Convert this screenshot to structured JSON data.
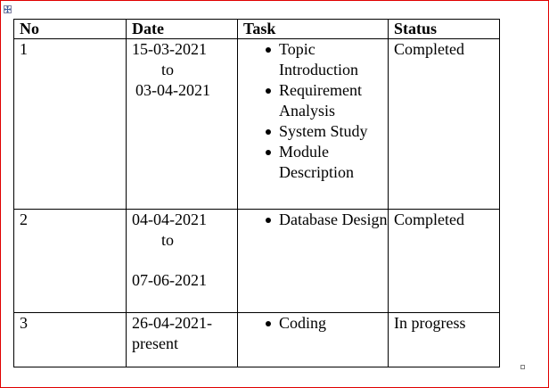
{
  "table": {
    "headers": [
      "No",
      "Date",
      "Task",
      "Status"
    ],
    "rows": [
      {
        "no": "1",
        "date_start": "15-03-2021",
        "date_to": "to",
        "date_end": "03-04-2021",
        "tasks": [
          "Topic Introduction",
          "Requirement Analysis",
          "System Study",
          "Module Description"
        ],
        "status": "Completed"
      },
      {
        "no": "2",
        "date_start": "04-04-2021",
        "date_to": "to",
        "date_end": "07-06-2021",
        "tasks": [
          "Database Design"
        ],
        "status": "Completed"
      },
      {
        "no": "3",
        "date_start": "26-04-2021-",
        "date_end": "present",
        "tasks": [
          "Coding"
        ],
        "status": "In progress"
      }
    ]
  },
  "icons": {
    "move_handle": "table-move-icon",
    "resize_handle": "table-resize-icon"
  },
  "colors": {
    "page_border": "#e00000",
    "table_border": "#000000",
    "text": "#000000"
  }
}
